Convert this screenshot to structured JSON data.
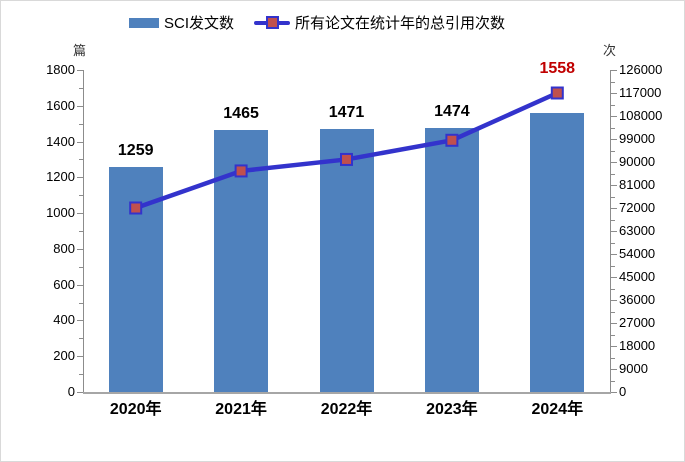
{
  "legend": {
    "items": [
      {
        "label": "SCI发文数",
        "swatch": "bar"
      },
      {
        "label": "所有论文在统计年的总引用次数",
        "swatch": "line-marker"
      }
    ]
  },
  "colors": {
    "bar": "#4F81BD",
    "line": "#3333CC",
    "marker_fill": "#C0504D",
    "marker_border": "#3333CC",
    "highlight_label": "#C00000",
    "normal_label": "#000000",
    "axis_line": "#8C8C8C",
    "baseline": "#A6A6A6",
    "tick": "#8C8C8C"
  },
  "chart_data": {
    "type": "bar",
    "subtype": "combo-bar-line",
    "title": "",
    "categories": [
      "2020年",
      "2021年",
      "2022年",
      "2023年",
      "2024年"
    ],
    "series": [
      {
        "name": "SCI发文数",
        "render": "bar",
        "axis": "left",
        "values": [
          1259,
          1465,
          1471,
          1474,
          1558
        ],
        "data_labels": [
          "1259",
          "1465",
          "1471",
          "1474",
          "1558"
        ],
        "data_label_colors": [
          "#000000",
          "#000000",
          "#000000",
          "#000000",
          "#C00000"
        ]
      },
      {
        "name": "所有论文在统计年的总引用次数",
        "render": "line",
        "axis": "right",
        "values": [
          72000,
          86500,
          91000,
          98500,
          117000
        ],
        "values_estimated_from_axis": true,
        "data_labels": []
      }
    ],
    "left_axis": {
      "unit": "篇",
      "min": 0,
      "max": 1800,
      "step": 200,
      "minor_step": 100,
      "tick_labels": [
        "0",
        "200",
        "400",
        "600",
        "800",
        "1000",
        "1200",
        "1400",
        "1600",
        "1800"
      ]
    },
    "right_axis": {
      "unit": "次",
      "min": 0,
      "max": 126000,
      "step": 9000,
      "minor_step": 4500,
      "tick_labels": [
        "0",
        "9000",
        "18000",
        "27000",
        "36000",
        "45000",
        "54000",
        "63000",
        "72000",
        "81000",
        "90000",
        "99000",
        "108000",
        "117000",
        "126000"
      ]
    },
    "grid": false,
    "legend_position": "top"
  }
}
